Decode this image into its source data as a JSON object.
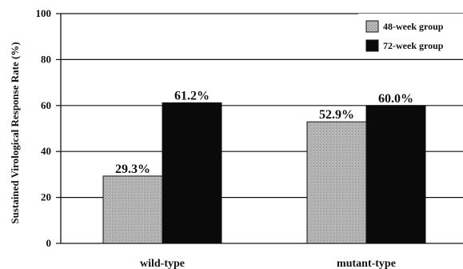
{
  "chart_data": {
    "type": "bar",
    "ylabel": "Sustained Virological Response Rate (%)",
    "xlabel": "",
    "ylim": [
      0,
      100
    ],
    "yticks": [
      0,
      20,
      40,
      60,
      80,
      100
    ],
    "grid": "horizontal",
    "legend_position": "top-right",
    "categories": [
      "wild-type",
      "mutant-type"
    ],
    "series": [
      {
        "name": "48-week group",
        "values": [
          29.3,
          52.9
        ],
        "labels": [
          "29.3%",
          "52.9%"
        ],
        "color": "#b4b4b4"
      },
      {
        "name": "72-week group",
        "values": [
          61.2,
          60.0
        ],
        "labels": [
          "61.2%",
          "60.0%"
        ],
        "color": "#0a0a0a"
      }
    ]
  }
}
